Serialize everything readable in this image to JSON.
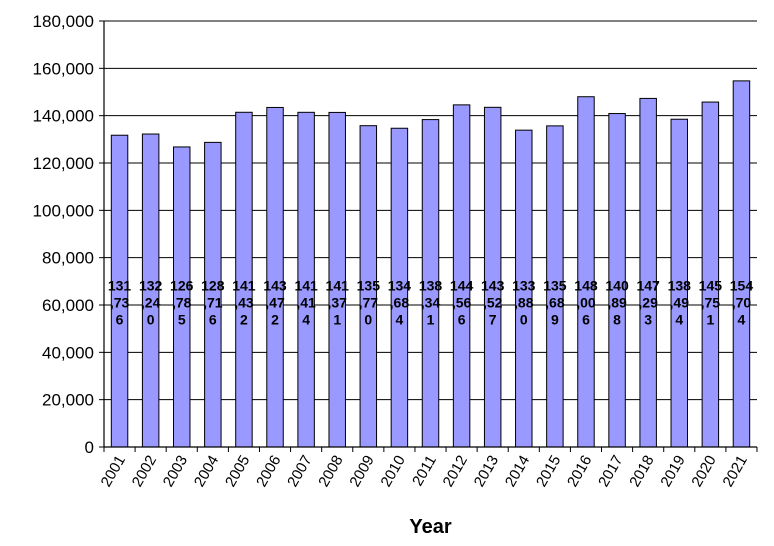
{
  "chart_data": {
    "type": "bar",
    "title": "",
    "xlabel": "Year",
    "ylabel": "",
    "ylim": [
      0,
      180000
    ],
    "yticks": [
      0,
      20000,
      40000,
      60000,
      80000,
      100000,
      120000,
      140000,
      160000,
      180000
    ],
    "ytick_labels": [
      "0",
      "20,000",
      "40,000",
      "60,000",
      "80,000",
      "100,000",
      "120,000",
      "140,000",
      "160,000",
      "180,000"
    ],
    "categories": [
      "2001",
      "2002",
      "2003",
      "2004",
      "2005",
      "2006",
      "2007",
      "2008",
      "2009",
      "2010",
      "2011",
      "2012",
      "2013",
      "2014",
      "2015",
      "2016",
      "2017",
      "2018",
      "2019",
      "2020",
      "2021"
    ],
    "values": [
      131736,
      132240,
      126785,
      128716,
      141432,
      143472,
      141414,
      141371,
      135770,
      134684,
      138341,
      144566,
      143527,
      133880,
      135689,
      148006,
      140898,
      147293,
      138494,
      145751,
      154704
    ],
    "data_labels": [
      [
        "131",
        ",73",
        "6"
      ],
      [
        "132",
        ",24",
        "0"
      ],
      [
        "126",
        ",78",
        "5"
      ],
      [
        "128",
        ",71",
        "6"
      ],
      [
        "141",
        ",43",
        "2"
      ],
      [
        "143",
        ",47",
        "2"
      ],
      [
        "141",
        ",41",
        "4"
      ],
      [
        "141",
        ",37",
        "1"
      ],
      [
        "135",
        ",77",
        "0"
      ],
      [
        "134",
        ",68",
        "4"
      ],
      [
        "138",
        ",34",
        "1"
      ],
      [
        "144",
        ",56",
        "6"
      ],
      [
        "143",
        ",52",
        "7"
      ],
      [
        "133",
        ",88",
        "0"
      ],
      [
        "135",
        ",68",
        "9"
      ],
      [
        "148",
        ",00",
        "6"
      ],
      [
        "140",
        ",89",
        "8"
      ],
      [
        "147",
        ",29",
        "3"
      ],
      [
        "138",
        ",49",
        "4"
      ],
      [
        "145",
        ",75",
        "1"
      ],
      [
        "154",
        ",70",
        "4"
      ]
    ],
    "colors": {
      "bar_fill": "#9999ff",
      "bar_stroke": "#000000",
      "grid": "#000000"
    },
    "grid": true,
    "legend": "none"
  }
}
